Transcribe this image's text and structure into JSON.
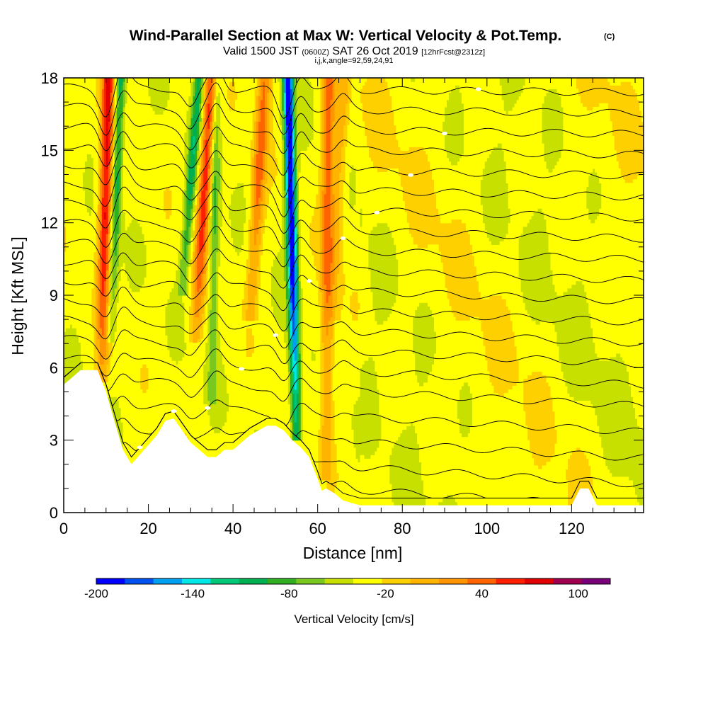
{
  "title": {
    "main": "Wind-Parallel Section at Max W: Vertical Velocity & Pot.Temp.",
    "copyright": "(C)",
    "valid_prefix": "Valid 1500 JST",
    "valid_z": "(0600Z)",
    "valid_date": "SAT 26 Oct 2019",
    "forecast": "[12hrFcst@2312z]",
    "indices": "i,j,k,angle=92,59,24,91"
  },
  "chart_data": {
    "type": "heatmap",
    "xlabel": "Distance [nm]",
    "ylabel": "Height [Kft MSL]",
    "xlim": [
      0,
      137
    ],
    "ylim": [
      0,
      18
    ],
    "x_ticks": [
      "0",
      "20",
      "40",
      "60",
      "80",
      "100",
      "120"
    ],
    "x_tick_values": [
      0,
      20,
      40,
      60,
      80,
      100,
      120
    ],
    "y_ticks": [
      "0",
      "3",
      "6",
      "9",
      "12",
      "15",
      "18"
    ],
    "y_tick_values": [
      0,
      3,
      6,
      9,
      12,
      15,
      18
    ],
    "grid": false,
    "colorbar": {
      "title": "Vertical Velocity [cm/s]",
      "labels": [
        "-200",
        "-140",
        "-80",
        "-20",
        "40",
        "100"
      ],
      "label_values": [
        -200,
        -140,
        -80,
        -20,
        40,
        100
      ],
      "bounds": [
        -200,
        120
      ],
      "step": 20,
      "colors": [
        "#0000ff",
        "#0050f0",
        "#00a0f0",
        "#00e8e8",
        "#00c878",
        "#00b050",
        "#30b020",
        "#78c820",
        "#c8e000",
        "#ffff00",
        "#ffd000",
        "#ffb400",
        "#ff9600",
        "#ff6400",
        "#ff1e00",
        "#e00000",
        "#a00050",
        "#780078"
      ]
    },
    "updraft_bands": [
      {
        "x_top": 10.5,
        "x_bottom": 9,
        "peak_cms": 120,
        "bottom_kft": 5.4
      },
      {
        "x_top": 35,
        "x_bottom": 31,
        "peak_cms": 110,
        "bottom_kft": 7
      },
      {
        "x_top": 47.5,
        "x_bottom": 44,
        "peak_cms": 80,
        "bottom_kft": 8
      },
      {
        "x_top": 62.5,
        "x_bottom": 62,
        "peak_cms": 80,
        "bottom_kft": 1.4
      },
      {
        "x_top": 66,
        "x_bottom": 64,
        "peak_cms": 40,
        "bottom_kft": 8
      }
    ],
    "downdraft_bands": [
      {
        "x_top": 13.5,
        "x_bottom": 11,
        "min_cms": -80,
        "bottom_kft": 7
      },
      {
        "x_top": 32,
        "x_bottom": 28,
        "min_cms": -80,
        "bottom_kft": 9
      },
      {
        "x_top": 53,
        "x_bottom": 55,
        "min_cms": -200,
        "bottom_kft": 3
      },
      {
        "x_top": 36,
        "x_bottom": 35,
        "min_cms": -60,
        "bottom_kft": 4.5
      }
    ],
    "terrain_kft": [
      [
        0,
        5.3
      ],
      [
        2,
        5.6
      ],
      [
        4,
        5.9
      ],
      [
        8,
        5.9
      ],
      [
        10,
        5.0
      ],
      [
        12,
        3.8
      ],
      [
        14,
        2.6
      ],
      [
        16,
        2.0
      ],
      [
        18,
        2.4
      ],
      [
        20,
        2.8
      ],
      [
        22,
        3.2
      ],
      [
        24,
        3.8
      ],
      [
        26,
        3.9
      ],
      [
        28,
        3.4
      ],
      [
        30,
        2.9
      ],
      [
        32,
        2.6
      ],
      [
        34,
        2.3
      ],
      [
        36,
        2.3
      ],
      [
        38,
        2.6
      ],
      [
        40,
        2.6
      ],
      [
        42,
        2.9
      ],
      [
        44,
        3.2
      ],
      [
        46,
        3.4
      ],
      [
        48,
        3.6
      ],
      [
        50,
        3.6
      ],
      [
        52,
        3.4
      ],
      [
        54,
        3.0
      ],
      [
        56,
        2.7
      ],
      [
        58,
        2.3
      ],
      [
        60,
        1.4
      ],
      [
        61,
        0.9
      ],
      [
        62,
        1.0
      ],
      [
        64,
        0.8
      ],
      [
        66,
        0.5
      ],
      [
        70,
        0.3
      ],
      [
        90,
        0.3
      ],
      [
        120,
        0.3
      ],
      [
        122,
        1.0
      ],
      [
        124,
        1.0
      ],
      [
        126,
        0.3
      ],
      [
        137,
        0.3
      ]
    ],
    "theta_contour_base_kft": [
      1.0,
      1.7,
      2.6,
      3.6,
      4.6,
      5.6,
      6.4,
      7.2,
      8.0,
      8.8,
      9.6,
      10.4,
      11.2,
      12.0,
      12.8,
      13.6,
      14.4,
      15.2,
      16.0,
      16.8,
      17.6
    ]
  }
}
